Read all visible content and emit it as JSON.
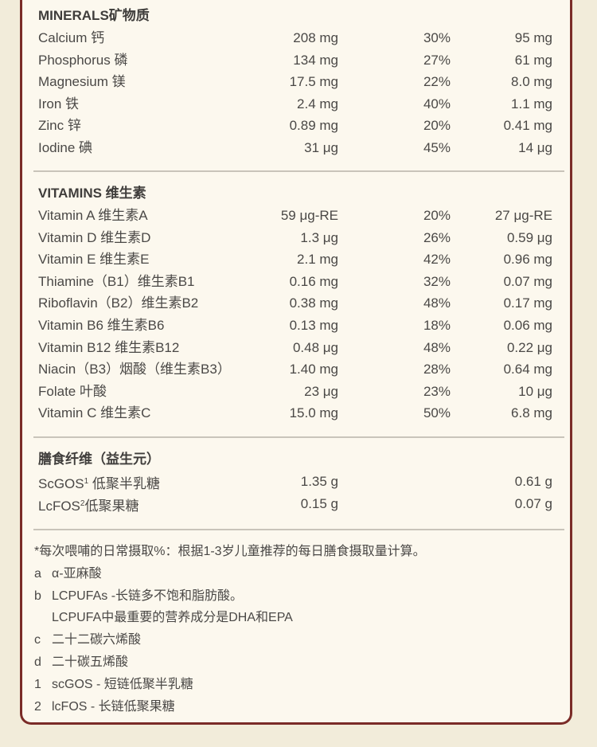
{
  "minerals": {
    "title": "MINERALS矿物质",
    "rows": [
      {
        "name": "Calcium 钙",
        "a": "208 mg",
        "p": "30%",
        "b": "95 mg"
      },
      {
        "name": "Phosphorus 磷",
        "a": "134 mg",
        "p": "27%",
        "b": "61 mg"
      },
      {
        "name": "Magnesium 镁",
        "a": "17.5 mg",
        "p": "22%",
        "b": "8.0 mg"
      },
      {
        "name": "Iron 铁",
        "a": "2.4 mg",
        "p": "40%",
        "b": "1.1 mg"
      },
      {
        "name": "Zinc 锌",
        "a": "0.89 mg",
        "p": "20%",
        "b": "0.41 mg"
      },
      {
        "name": "Iodine 碘",
        "a": "31 μg",
        "p": "45%",
        "b": "14 μg"
      }
    ]
  },
  "vitamins": {
    "title": "VITAMINS 维生素",
    "rows": [
      {
        "name": "Vitamin A 维生素A",
        "a": "59 μg-RE",
        "p": "20%",
        "b": "27 μg-RE"
      },
      {
        "name": "Vitamin D 维生素D",
        "a": "1.3 μg",
        "p": "26%",
        "b": "0.59 μg"
      },
      {
        "name": "Vitamin E 维生素E",
        "a": "2.1 mg",
        "p": "42%",
        "b": "0.96 mg"
      },
      {
        "name": "Thiamine（B1）维生素B1",
        "a": "0.16 mg",
        "p": "32%",
        "b": "0.07 mg"
      },
      {
        "name": "Riboflavin（B2）维生素B2",
        "a": "0.38 mg",
        "p": "48%",
        "b": "0.17 mg"
      },
      {
        "name": "Vitamin B6 维生素B6",
        "a": "0.13 mg",
        "p": "18%",
        "b": "0.06 mg"
      },
      {
        "name": "Vitamin B12 维生素B12",
        "a": "0.48 μg",
        "p": "48%",
        "b": "0.22 μg"
      },
      {
        "name": "Niacin（B3）烟酸（维生素B3）",
        "a": "1.40 mg",
        "p": "28%",
        "b": "0.64 mg"
      },
      {
        "name": "Folate 叶酸",
        "a": "23 μg",
        "p": "23%",
        "b": "10 μg"
      },
      {
        "name": "Vitamin C 维生素C",
        "a": "15.0 mg",
        "p": "50%",
        "b": "6.8 mg"
      }
    ]
  },
  "fiber": {
    "title": "膳食纤维（益生元）",
    "rows": [
      {
        "name": "ScGOS",
        "sup": "1",
        "cn": " 低聚半乳糖",
        "a": "1.35 g",
        "p": "",
        "b": "0.61 g"
      },
      {
        "name": "LcFOS",
        "sup": "2",
        "cn": "低聚果糖",
        "a": "0.15 g",
        "p": "",
        "b": "0.07 g"
      }
    ]
  },
  "footnotes": {
    "note": "*每次喂哺的日常摄取%：根据1-3岁儿童推荐的每日膳食摄取量计算。",
    "items": [
      {
        "k": "a",
        "t": "α-亚麻酸"
      },
      {
        "k": "b",
        "t": "LCPUFAs -长链多不饱和脂肪酸。"
      },
      {
        "k": "",
        "t": "LCPUFA中最重要的营养成分是DHA和EPA"
      },
      {
        "k": "c",
        "t": "二十二碳六烯酸"
      },
      {
        "k": "d",
        "t": "二十碳五烯酸"
      },
      {
        "k": "1",
        "t": "scGOS - 短链低聚半乳糖"
      },
      {
        "k": "2",
        "t": "lcFOS - 长链低聚果糖"
      }
    ]
  }
}
